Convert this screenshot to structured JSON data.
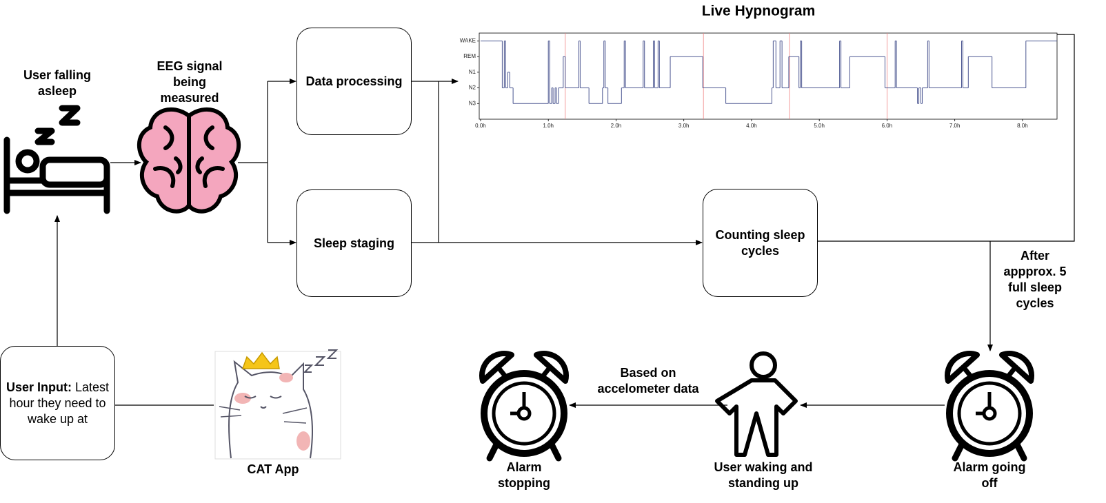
{
  "labels": {
    "user_falling_asleep": "User falling asleep",
    "eeg": "EEG signal being measured",
    "cat_app": "CAT App",
    "after_cycles": "After appprox. 5 full sleep cycles",
    "accelerometer": "Based on accelometer data",
    "alarm_stopping": "Alarm stopping",
    "user_waking": "User waking and standing up",
    "alarm_going_off": "Alarm going off"
  },
  "boxes": {
    "data_processing": "Data processing",
    "sleep_staging": "Sleep staging",
    "counting": "Counting sleep cycles",
    "user_input": {
      "lead": "User Input:",
      "text": "Latest hour they need to wake up at"
    }
  },
  "hypnogram": {
    "type": "step",
    "title": "Live Hypnogram",
    "color": "#4a5590",
    "boundary_color": "#f08080",
    "xlim": [
      -0.02,
      8.51
    ],
    "ylim": [
      -1,
      4.5
    ],
    "xticks": [
      {
        "value": 0,
        "label": "0.0h"
      },
      {
        "value": 1,
        "label": "1.0h"
      },
      {
        "value": 2,
        "label": "2.0h"
      },
      {
        "value": 3,
        "label": "3.0h"
      },
      {
        "value": 4,
        "label": "4.0h"
      },
      {
        "value": 5,
        "label": "5.0h"
      },
      {
        "value": 6,
        "label": "6.0h"
      },
      {
        "value": 7,
        "label": "7.0h"
      },
      {
        "value": 8,
        "label": "8.0h"
      }
    ],
    "yticks": [
      {
        "value": 4,
        "label": "WAKE"
      },
      {
        "value": 3,
        "label": "REM"
      },
      {
        "value": 2,
        "label": "N1"
      },
      {
        "value": 1,
        "label": "N2"
      },
      {
        "value": 0,
        "label": "N3"
      }
    ],
    "cycle_boundaries": [
      1.25,
      3.29,
      4.56,
      6.0
    ],
    "x": [
      0,
      0.32,
      0.35,
      0.37,
      0.4,
      0.43,
      0.48,
      1.0,
      1.02,
      1.05,
      1.07,
      1.1,
      1.12,
      1.15,
      1.22,
      1.25,
      1.45,
      1.47,
      1.6,
      1.8,
      1.82,
      1.84,
      1.88,
      2.08,
      2.12,
      2.14,
      2.4,
      2.42,
      2.55,
      2.57,
      2.62,
      2.64,
      2.8,
      3.28,
      3.62,
      4.3,
      4.32,
      4.36,
      4.42,
      4.45,
      4.55,
      4.7,
      4.72,
      4.74,
      5.3,
      5.32,
      5.45,
      5.97,
      6.12,
      6.14,
      6.45,
      6.47,
      6.5,
      6.52,
      6.6,
      6.62,
      7.1,
      7.12,
      7.2,
      7.55,
      8.05
    ],
    "values": [
      4,
      1,
      4,
      1,
      2,
      1,
      0,
      4,
      0,
      1,
      0,
      1,
      0,
      1,
      3,
      1,
      4,
      1,
      0,
      1,
      4,
      1,
      0,
      1,
      4,
      1,
      4,
      1,
      4,
      1,
      4,
      1,
      3,
      1,
      0,
      1,
      4,
      1,
      4,
      1,
      3,
      1,
      4,
      1,
      4,
      1,
      3,
      1,
      4,
      1,
      0,
      1,
      0,
      1,
      4,
      1,
      4,
      1,
      3,
      1,
      4
    ]
  }
}
